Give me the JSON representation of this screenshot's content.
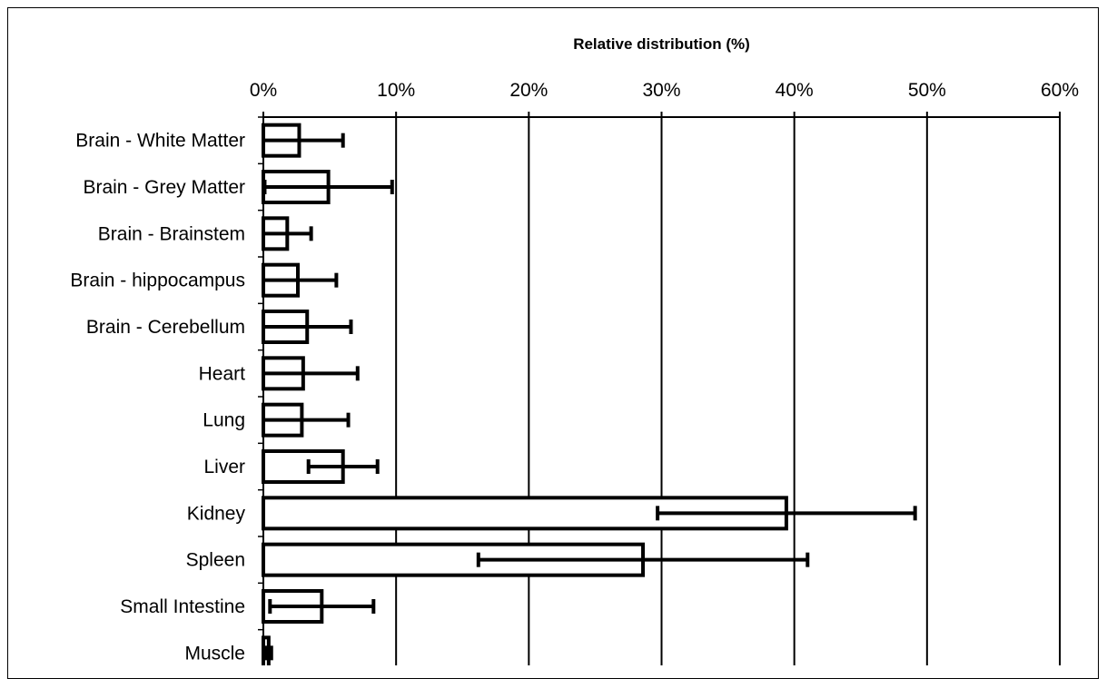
{
  "chart_data": {
    "type": "bar",
    "orientation": "horizontal",
    "title": "Relative distribution (%)",
    "xlim": [
      0,
      60
    ],
    "xticks": [
      "0%",
      "10%",
      "20%",
      "30%",
      "40%",
      "50%",
      "60%"
    ],
    "grid": true,
    "legend": "none",
    "categories": [
      "Brain - White Matter",
      "Brain - Grey Matter",
      "Brain - Brainstem",
      "Brain - hippocampus",
      "Brain - Cerebellum",
      "Heart",
      "Lung",
      "Liver",
      "Kidney",
      "Spleen",
      "Small Intestine",
      "Muscle"
    ],
    "values": [
      2.7,
      4.9,
      1.8,
      2.6,
      3.3,
      3.0,
      2.9,
      6.0,
      39.4,
      28.6,
      4.4,
      0.4
    ],
    "error_plus_minus": [
      3.3,
      4.8,
      1.8,
      2.9,
      3.3,
      4.1,
      3.5,
      2.6,
      9.7,
      12.4,
      3.9,
      0.2
    ]
  }
}
